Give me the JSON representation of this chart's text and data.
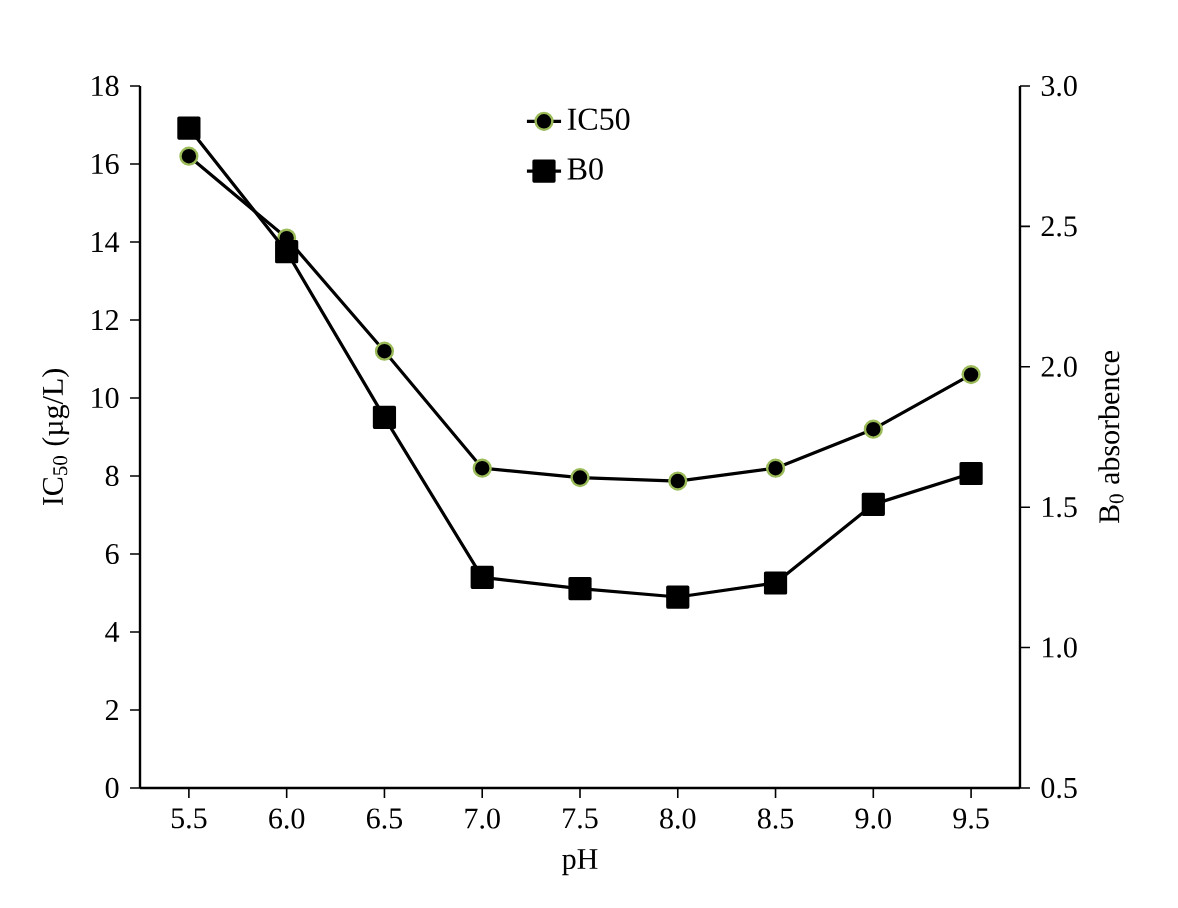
{
  "chart_data": {
    "type": "line",
    "categories": [
      "5.5",
      "6.0",
      "6.5",
      "7.0",
      "7.5",
      "8.0",
      "8.5",
      "9.0",
      "9.5"
    ],
    "series": [
      {
        "name": "IC50",
        "color": "#000000",
        "marker": "circle",
        "values": [
          16.2,
          14.1,
          11.2,
          8.2,
          7.96,
          7.87,
          8.2,
          9.2,
          10.6
        ]
      },
      {
        "name": "B0",
        "color": "#000000",
        "marker": "square",
        "axis": "y2",
        "values": [
          2.85,
          2.41,
          1.82,
          1.25,
          1.21,
          1.18,
          1.23,
          1.51,
          1.62
        ]
      }
    ],
    "xlabel": "pH",
    "ylabel": "IC$_{50}$ (µg/L)",
    "y2label": "B$_{0}$ absorbence",
    "ylim": [
      0,
      18
    ],
    "yticks": [
      0,
      2,
      4,
      6,
      8,
      10,
      12,
      14,
      16,
      18
    ],
    "y2lim": [
      0.5,
      3.0
    ],
    "y2ticks": [
      0.5,
      {
        "value": 1.0,
        "label": "1.0"
      },
      1.5,
      {
        "value": 2.0,
        "label": "2.0"
      },
      2.5,
      {
        "value": 3.0,
        "label": "3.0"
      }
    ],
    "legend": "top",
    "grid": false,
    "line_style": "solid"
  }
}
